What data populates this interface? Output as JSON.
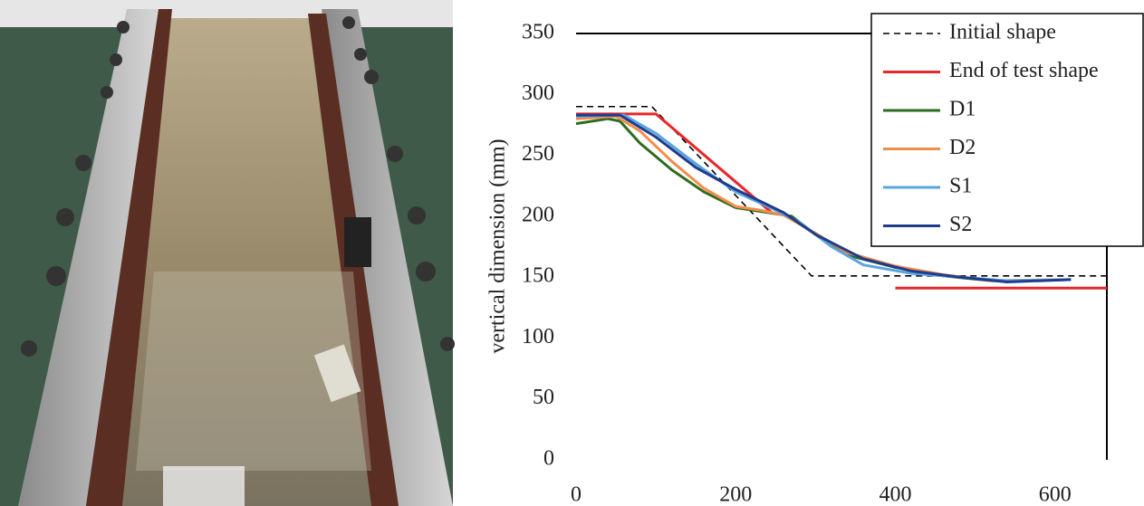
{
  "chart_data": {
    "type": "line",
    "ylabel": "vertical  dimension   (mm)",
    "xlim": [
      0,
      665
    ],
    "ylim": [
      0,
      350
    ],
    "xticks": [
      0,
      200,
      400,
      600
    ],
    "yticks": [
      0,
      50,
      100,
      150,
      200,
      250,
      300,
      350
    ],
    "legend": "upper-right",
    "series": [
      {
        "name": "Initial shape",
        "color": "#000000",
        "dash": true,
        "x": [
          0,
          95,
          295,
          665
        ],
        "values": [
          290,
          290,
          151,
          151
        ]
      },
      {
        "name": "End of test shape",
        "color": "#e8262a",
        "x": [
          0,
          100,
          245,
          260,
          400,
          665
        ],
        "values": [
          284,
          284,
          203,
          null,
          141,
          141
        ]
      },
      {
        "name": "D1",
        "color": "#2e6b1f",
        "x": [
          0,
          40,
          55,
          80,
          120,
          160,
          200,
          240,
          270,
          300,
          340,
          400,
          460,
          520,
          560,
          620
        ],
        "values": [
          276,
          280,
          278,
          260,
          238,
          220,
          207,
          203,
          200,
          185,
          168,
          158,
          151,
          147,
          147,
          148
        ]
      },
      {
        "name": "D2",
        "color": "#f28c4a",
        "x": [
          0,
          50,
          80,
          120,
          160,
          200,
          230,
          260,
          300,
          340,
          400,
          460,
          520,
          620
        ],
        "values": [
          280,
          282,
          270,
          245,
          223,
          208,
          205,
          201,
          186,
          170,
          159,
          152,
          147,
          148
        ]
      },
      {
        "name": "S1",
        "color": "#5aa5e0",
        "x": [
          0,
          60,
          100,
          150,
          200,
          250,
          280,
          320,
          360,
          420,
          480,
          540,
          620
        ],
        "values": [
          282,
          283,
          268,
          243,
          220,
          205,
          195,
          175,
          160,
          153,
          150,
          147,
          148
        ]
      },
      {
        "name": "S2",
        "color": "#1f3c8c",
        "x": [
          0,
          55,
          100,
          150,
          200,
          260,
          300,
          360,
          420,
          480,
          540,
          620
        ],
        "values": [
          283,
          283,
          265,
          240,
          222,
          203,
          185,
          165,
          155,
          150,
          146,
          148
        ]
      }
    ]
  }
}
